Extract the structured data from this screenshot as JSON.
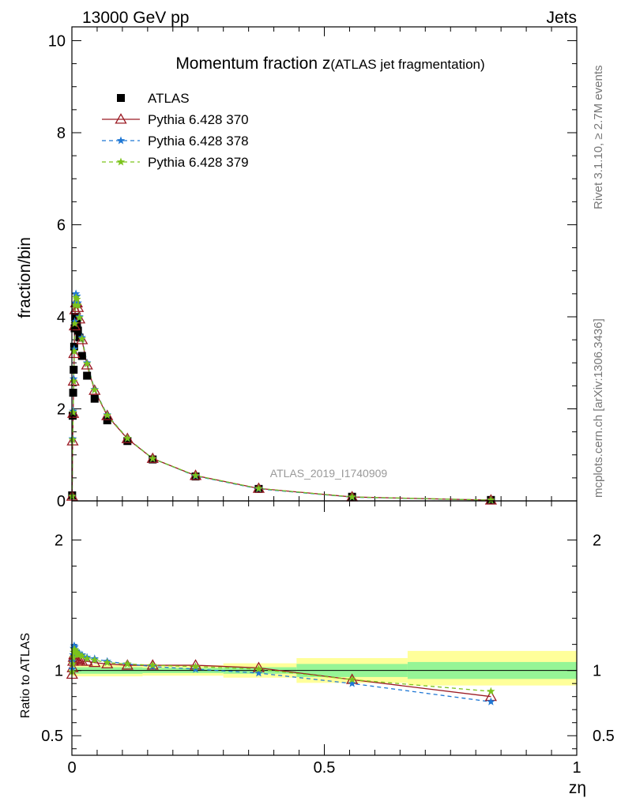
{
  "header": {
    "left": "13000 GeV pp",
    "right": "Jets"
  },
  "side_labels": {
    "rivet": "Rivet 3.1.10, ≥ 2.7M events",
    "mcplots": "mcplots.cern.ch [arXiv:1306.3436]"
  },
  "colors": {
    "atlas": "#000000",
    "pythia370": "#9b1b24",
    "pythia378": "#1f77d4",
    "pythia379": "#7cc31c",
    "band_inner": "#96f596",
    "band_outer": "#ffff9a"
  },
  "chart_data": [
    {
      "type": "scatter",
      "title": "Momentum fraction z",
      "title_suffix": "(ATLAS jet fragmentation)",
      "ylabel": "fraction/bin",
      "xlabel": "zη",
      "watermark": "ATLAS_2019_I1740909",
      "xlim": [
        0,
        1
      ],
      "ylim": [
        0,
        10.3
      ],
      "yticks": [
        0,
        2,
        4,
        6,
        8,
        10
      ],
      "legend_position": "top-left",
      "series": [
        {
          "name": "ATLAS",
          "marker": "square",
          "x": [
            0.0005,
            0.0015,
            0.0025,
            0.0035,
            0.0045,
            0.0055,
            0.0065,
            0.008,
            0.01,
            0.012,
            0.015,
            0.02,
            0.03,
            0.045,
            0.07,
            0.11,
            0.16,
            0.245,
            0.37,
            0.555,
            0.83
          ],
          "y": [
            0.12,
            1.85,
            2.35,
            2.85,
            3.35,
            3.75,
            4.0,
            3.95,
            3.85,
            3.7,
            3.55,
            3.15,
            2.72,
            2.22,
            1.75,
            1.3,
            0.9,
            0.53,
            0.26,
            0.09,
            0.02
          ]
        },
        {
          "name": "Pythia 6.428 370",
          "marker": "triangle",
          "x": [
            0.0005,
            0.0015,
            0.0025,
            0.0035,
            0.0045,
            0.0055,
            0.0065,
            0.008,
            0.01,
            0.012,
            0.015,
            0.02,
            0.03,
            0.045,
            0.07,
            0.11,
            0.16,
            0.245,
            0.37,
            0.555,
            0.83
          ],
          "y": [
            0.1,
            1.3,
            1.9,
            2.6,
            3.2,
            3.8,
            4.15,
            4.3,
            4.3,
            4.2,
            3.95,
            3.5,
            2.95,
            2.4,
            1.85,
            1.35,
            0.92,
            0.55,
            0.27,
            0.085,
            0.016
          ]
        },
        {
          "name": "Pythia 6.428 378",
          "marker": "star",
          "x": [
            0.0005,
            0.0015,
            0.0025,
            0.0035,
            0.0045,
            0.0055,
            0.0065,
            0.008,
            0.01,
            0.012,
            0.015,
            0.02,
            0.03,
            0.045,
            0.07,
            0.11,
            0.16,
            0.245,
            0.37,
            0.555,
            0.83
          ],
          "y": [
            0.1,
            1.35,
            1.95,
            2.65,
            3.3,
            3.9,
            4.3,
            4.5,
            4.45,
            4.3,
            4.0,
            3.55,
            3.0,
            2.42,
            1.87,
            1.36,
            0.92,
            0.54,
            0.26,
            0.08,
            0.015
          ]
        },
        {
          "name": "Pythia 6.428 379",
          "marker": "star",
          "x": [
            0.0005,
            0.0015,
            0.0025,
            0.0035,
            0.0045,
            0.0055,
            0.0065,
            0.008,
            0.01,
            0.012,
            0.015,
            0.02,
            0.03,
            0.045,
            0.07,
            0.11,
            0.16,
            0.245,
            0.37,
            0.555,
            0.83
          ],
          "y": [
            0.1,
            1.33,
            1.92,
            2.6,
            3.25,
            3.85,
            4.25,
            4.42,
            4.38,
            4.25,
            3.98,
            3.52,
            2.98,
            2.41,
            1.86,
            1.36,
            0.92,
            0.55,
            0.27,
            0.085,
            0.017
          ]
        }
      ]
    },
    {
      "type": "line",
      "ylabel": "Ratio to ATLAS",
      "xlim": [
        0,
        1
      ],
      "ylim": [
        0.35,
        2.3
      ],
      "yticks": [
        0.5,
        1,
        2
      ],
      "xticks": [
        0,
        0.5,
        1
      ],
      "reference": 1,
      "bands": [
        {
          "x0": 0.0,
          "x1": 0.14,
          "inner": [
            0.975,
            1.025
          ],
          "outer": [
            0.955,
            1.045
          ]
        },
        {
          "x0": 0.14,
          "x1": 0.3,
          "inner": [
            0.98,
            1.02
          ],
          "outer": [
            0.96,
            1.04
          ]
        },
        {
          "x0": 0.3,
          "x1": 0.445,
          "inner": [
            0.975,
            1.025
          ],
          "outer": [
            0.945,
            1.055
          ]
        },
        {
          "x0": 0.445,
          "x1": 0.665,
          "inner": [
            0.95,
            1.05
          ],
          "outer": [
            0.905,
            1.095
          ]
        },
        {
          "x0": 0.665,
          "x1": 1.0,
          "inner": [
            0.935,
            1.065
          ],
          "outer": [
            0.885,
            1.15
          ]
        }
      ],
      "series": [
        {
          "name": "Pythia 6.428 370",
          "marker": "triangle",
          "x": [
            0.0005,
            0.0015,
            0.0025,
            0.0035,
            0.0045,
            0.0055,
            0.0065,
            0.008,
            0.01,
            0.012,
            0.015,
            0.02,
            0.03,
            0.045,
            0.07,
            0.11,
            0.16,
            0.245,
            0.37,
            0.555,
            0.83
          ],
          "y": [
            0.97,
            1.02,
            1.07,
            1.1,
            1.12,
            1.11,
            1.1,
            1.1,
            1.09,
            1.08,
            1.08,
            1.07,
            1.07,
            1.06,
            1.05,
            1.04,
            1.04,
            1.04,
            1.02,
            0.93,
            0.8
          ]
        },
        {
          "name": "Pythia 6.428 378",
          "marker": "star",
          "x": [
            0.0005,
            0.0015,
            0.0025,
            0.0035,
            0.0045,
            0.0055,
            0.0065,
            0.008,
            0.01,
            0.012,
            0.015,
            0.02,
            0.03,
            0.045,
            0.07,
            0.11,
            0.16,
            0.245,
            0.37,
            0.555,
            0.83
          ],
          "y": [
            1.01,
            1.07,
            1.12,
            1.17,
            1.19,
            1.18,
            1.16,
            1.15,
            1.14,
            1.13,
            1.13,
            1.12,
            1.1,
            1.09,
            1.07,
            1.05,
            1.03,
            1.01,
            0.98,
            0.9,
            0.76
          ]
        },
        {
          "name": "Pythia 6.428 379",
          "marker": "star",
          "x": [
            0.0005,
            0.0015,
            0.0025,
            0.0035,
            0.0045,
            0.0055,
            0.0065,
            0.008,
            0.01,
            0.012,
            0.015,
            0.02,
            0.03,
            0.045,
            0.07,
            0.11,
            0.16,
            0.245,
            0.37,
            0.555,
            0.83
          ],
          "y": [
            0.99,
            1.05,
            1.1,
            1.14,
            1.16,
            1.16,
            1.15,
            1.14,
            1.13,
            1.12,
            1.12,
            1.11,
            1.09,
            1.08,
            1.06,
            1.05,
            1.04,
            1.03,
            1.01,
            0.93,
            0.84
          ]
        }
      ]
    }
  ]
}
